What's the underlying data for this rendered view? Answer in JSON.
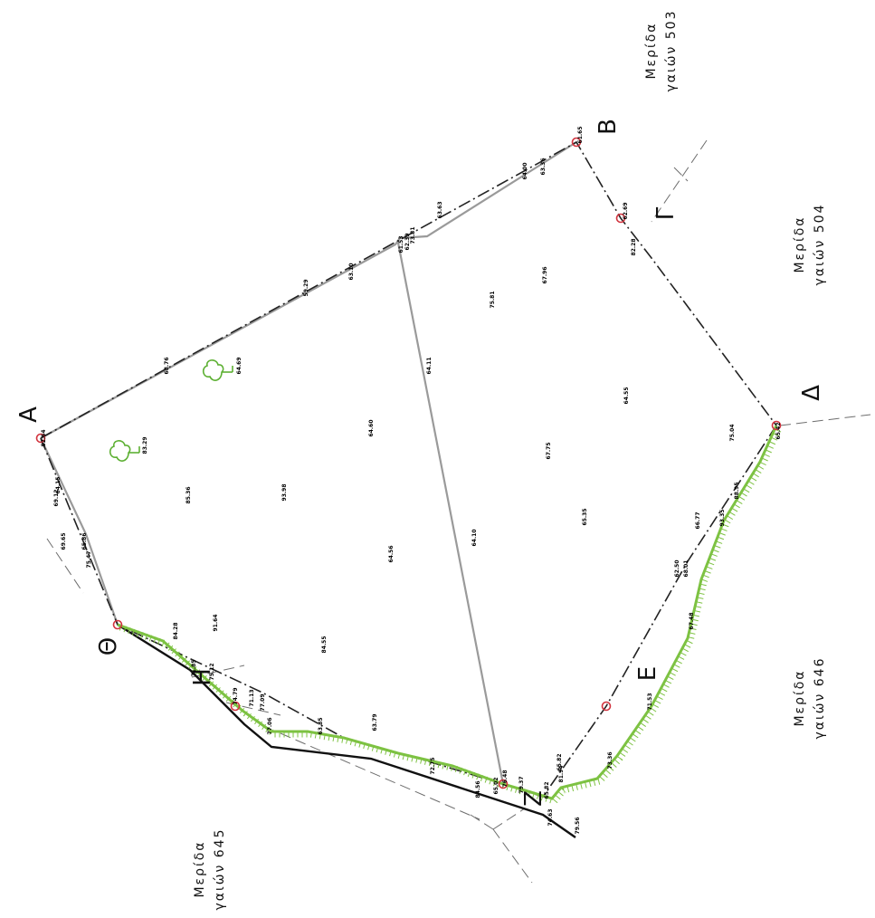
{
  "colors": {
    "boundary": "#222222",
    "inner_line": "#9a9a9a",
    "survey_marker": "#d2343f",
    "vegetation": "#7dc242",
    "tree": "#5db033",
    "background": "#ffffff"
  },
  "vertices": [
    {
      "id": "A",
      "label": "A"
    },
    {
      "id": "B",
      "label": "B"
    },
    {
      "id": "G",
      "label": "Γ"
    },
    {
      "id": "D",
      "label": "Δ"
    },
    {
      "id": "E",
      "label": "Ε"
    },
    {
      "id": "Z",
      "label": "Ζ"
    },
    {
      "id": "H",
      "label": "Η"
    },
    {
      "id": "TH",
      "label": "Θ"
    }
  ],
  "parcels": [
    {
      "id": "p503",
      "line1": "Μερίδα",
      "line2": "γαιών 503"
    },
    {
      "id": "p504",
      "line1": "Μερίδα",
      "line2": "γαιών 504"
    },
    {
      "id": "p646",
      "line1": "Μερίδα",
      "line2": "γαιών 646"
    },
    {
      "id": "p645",
      "line1": "Μερίδα",
      "line2": "γαιών 645"
    }
  ],
  "elevations": [
    "79.56",
    "65.82",
    "65.82",
    "79.37",
    "74.63",
    "73.36",
    "71.53",
    "67.48",
    "68.01",
    "62.50",
    "66.77",
    "93.35",
    "88.95",
    "75.04",
    "65.42",
    "82.28",
    "62.69",
    "61.65",
    "63.36",
    "64.00",
    "63.63",
    "73.81",
    "62.39",
    "61.53",
    "63.10",
    "59.29",
    "68.76",
    "69.65",
    "75.47",
    "65.86",
    "69.12",
    "64.15",
    "82.64",
    "67.96",
    "75.81",
    "64.11",
    "64.60",
    "67.75",
    "64.55",
    "65.35",
    "64.10",
    "64.56",
    "93.98",
    "85.36",
    "91.64",
    "84.55",
    "84.28",
    "71.85",
    "75.12",
    "74.79",
    "71.13",
    "77.09",
    "77.06",
    "63.85",
    "63.79",
    "72.75",
    "84.56",
    "76.48",
    "81.94",
    "65.02"
  ],
  "trees": [
    {
      "id": "tree-1",
      "elev": "83.29"
    },
    {
      "id": "tree-2",
      "elev": "64.69"
    }
  ]
}
